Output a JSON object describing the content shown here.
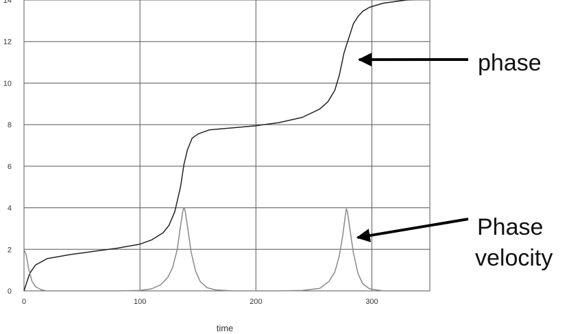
{
  "chart_data": {
    "type": "line",
    "title": "",
    "xlabel": "time",
    "ylabel": "",
    "xlim": [
      0,
      350
    ],
    "ylim": [
      0,
      14
    ],
    "grid": true,
    "legend": "none",
    "x_ticks": [
      0,
      100,
      200,
      300
    ],
    "x_tick_labels": [
      "0",
      "100",
      "200",
      "300"
    ],
    "y_ticks": [
      0,
      2,
      4,
      6,
      8,
      10,
      12,
      14
    ],
    "y_tick_labels": [
      "0",
      "2",
      "4",
      "6",
      "8",
      "10",
      "12",
      "14"
    ],
    "series": [
      {
        "color": "#222222",
        "x": [
          0,
          2,
          5,
          10,
          20,
          40,
          60,
          80,
          100,
          110,
          120,
          125,
          130,
          135,
          138,
          141,
          145,
          150,
          160,
          180,
          200,
          220,
          240,
          255,
          262,
          268,
          272,
          276,
          280,
          284,
          288,
          292,
          298,
          310,
          330,
          350
        ],
        "values": [
          0.0,
          0.35,
          0.85,
          1.25,
          1.55,
          1.75,
          1.9,
          2.05,
          2.25,
          2.45,
          2.8,
          3.15,
          3.8,
          5.0,
          6.1,
          6.8,
          7.35,
          7.55,
          7.75,
          7.85,
          7.95,
          8.1,
          8.35,
          8.75,
          9.1,
          9.65,
          10.4,
          11.45,
          12.15,
          12.85,
          13.2,
          13.45,
          13.65,
          13.85,
          14.0,
          14.05
        ]
      },
      {
        "color": "#888888",
        "x": [
          0,
          2,
          4,
          7,
          10,
          15,
          20,
          40,
          60,
          80,
          100,
          110,
          118,
          124,
          128,
          132,
          135,
          137,
          138,
          139,
          141,
          144,
          148,
          152,
          158,
          165,
          180,
          200,
          220,
          240,
          255,
          263,
          268,
          272,
          275,
          277,
          278,
          279,
          281,
          284,
          288,
          292,
          298,
          310,
          330,
          350
        ],
        "values": [
          2.0,
          1.7,
          1.05,
          0.45,
          0.2,
          0.05,
          0.0,
          0.0,
          0.0,
          0.0,
          0.02,
          0.1,
          0.3,
          0.65,
          1.1,
          1.95,
          3.1,
          3.85,
          4.0,
          3.85,
          3.1,
          1.9,
          0.95,
          0.45,
          0.15,
          0.05,
          0.0,
          0.0,
          0.0,
          0.02,
          0.12,
          0.45,
          0.9,
          1.7,
          2.7,
          3.55,
          3.95,
          3.8,
          3.0,
          1.85,
          0.85,
          0.35,
          0.1,
          0.0,
          0.0,
          0.0
        ]
      }
    ],
    "annotations": [
      {
        "text": "phase",
        "target": {
          "x": 282,
          "y": 11.0
        }
      },
      {
        "lines": [
          "Phase",
          "velocity"
        ],
        "target": {
          "x": 283,
          "y": 2.6
        }
      }
    ]
  }
}
